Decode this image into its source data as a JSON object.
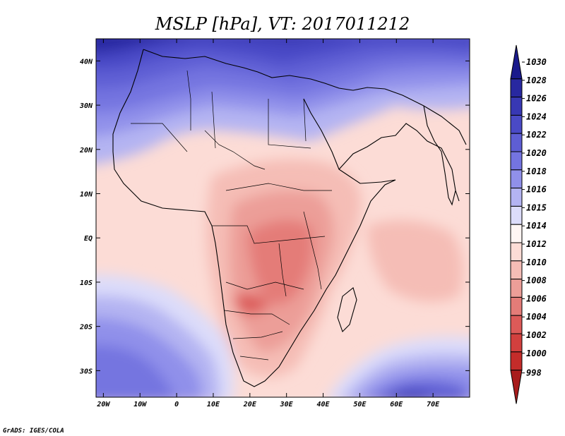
{
  "title": "MSLP [hPa], VT: 2017011212",
  "credit": "GrADS: IGES/COLA",
  "map": {
    "lon_range": [
      -22,
      80
    ],
    "lat_range": [
      -36,
      45
    ],
    "lon_ticks": [
      {
        "value": -20,
        "label": "20W"
      },
      {
        "value": -10,
        "label": "10W"
      },
      {
        "value": 0,
        "label": "0"
      },
      {
        "value": 10,
        "label": "10E"
      },
      {
        "value": 20,
        "label": "20E"
      },
      {
        "value": 30,
        "label": "30E"
      },
      {
        "value": 40,
        "label": "40E"
      },
      {
        "value": 50,
        "label": "50E"
      },
      {
        "value": 60,
        "label": "60E"
      },
      {
        "value": 70,
        "label": "70E"
      }
    ],
    "lat_ticks": [
      {
        "value": 40,
        "label": "40N"
      },
      {
        "value": 30,
        "label": "30N"
      },
      {
        "value": 20,
        "label": "20N"
      },
      {
        "value": 10,
        "label": "10N"
      },
      {
        "value": 0,
        "label": "EQ"
      },
      {
        "value": -10,
        "label": "10S"
      },
      {
        "value": -20,
        "label": "20S"
      },
      {
        "value": -30,
        "label": "30S"
      }
    ]
  },
  "colorbar": {
    "levels": [
      {
        "label": "1030",
        "color": "#1a1a8c"
      },
      {
        "label": "1028",
        "color": "#2828a0"
      },
      {
        "label": "1026",
        "color": "#3838b4"
      },
      {
        "label": "1024",
        "color": "#4a4ac6"
      },
      {
        "label": "1022",
        "color": "#5e5ed4"
      },
      {
        "label": "1020",
        "color": "#7474e0"
      },
      {
        "label": "1018",
        "color": "#9090ea"
      },
      {
        "label": "1016",
        "color": "#b4b4f2"
      },
      {
        "label": "1015",
        "color": "#dcdcfa"
      },
      {
        "label": "1014",
        "color": "#fff6f4"
      },
      {
        "label": "1012",
        "color": "#fcdcd6"
      },
      {
        "label": "1010",
        "color": "#f5bdb6"
      },
      {
        "label": "1008",
        "color": "#ec9e98"
      },
      {
        "label": "1006",
        "color": "#e47c78"
      },
      {
        "label": "1004",
        "color": "#dc5a58"
      },
      {
        "label": "1002",
        "color": "#d2403e"
      },
      {
        "label": "1000",
        "color": "#c42c2a"
      },
      {
        "label": "998",
        "color": "#a81c1c"
      }
    ]
  }
}
